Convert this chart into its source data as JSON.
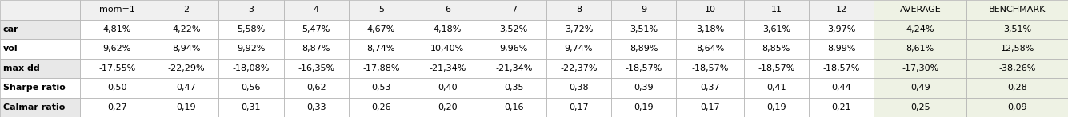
{
  "columns": [
    "",
    "mom=1",
    "2",
    "3",
    "4",
    "5",
    "6",
    "7",
    "8",
    "9",
    "10",
    "11",
    "12",
    "AVERAGE",
    "BENCHMARK"
  ],
  "rows": [
    [
      "car",
      "4,81%",
      "4,22%",
      "5,58%",
      "5,47%",
      "4,67%",
      "4,18%",
      "3,52%",
      "3,72%",
      "3,51%",
      "3,18%",
      "3,61%",
      "3,97%",
      "4,24%",
      "3,51%"
    ],
    [
      "vol",
      "9,62%",
      "8,94%",
      "9,92%",
      "8,87%",
      "8,74%",
      "10,40%",
      "9,96%",
      "9,74%",
      "8,89%",
      "8,64%",
      "8,85%",
      "8,99%",
      "8,61%",
      "12,58%"
    ],
    [
      "max dd",
      "-17,55%",
      "-22,29%",
      "-18,08%",
      "-16,35%",
      "-17,88%",
      "-21,34%",
      "-21,34%",
      "-22,37%",
      "-18,57%",
      "-18,57%",
      "-18,57%",
      "-18,57%",
      "-17,30%",
      "-38,26%"
    ],
    [
      "Sharpe ratio",
      "0,50",
      "0,47",
      "0,56",
      "0,62",
      "0,53",
      "0,40",
      "0,35",
      "0,38",
      "0,39",
      "0,37",
      "0,41",
      "0,44",
      "0,49",
      "0,28"
    ],
    [
      "Calmar ratio",
      "0,27",
      "0,19",
      "0,31",
      "0,33",
      "0,26",
      "0,20",
      "0,16",
      "0,17",
      "0,19",
      "0,17",
      "0,19",
      "0,21",
      "0,25",
      "0,09"
    ]
  ],
  "raw_widths": [
    95,
    87,
    77,
    77,
    77,
    77,
    80,
    77,
    77,
    77,
    80,
    77,
    77,
    110,
    120
  ],
  "header_bg": "#f0f0f0",
  "data_bg_white": "#ffffff",
  "data_bg_gray": "#e8e8e8",
  "average_bg": "#eef2e4",
  "border_color": "#b0b0b0",
  "header_font_size": 8.0,
  "data_font_size": 8.0,
  "bold_row_labels": [
    "car",
    "vol",
    "max dd",
    "Sharpe ratio",
    "Calmar ratio"
  ],
  "italic_rows": [],
  "fig_width": 13.35,
  "fig_height": 1.47,
  "dpi": 100
}
